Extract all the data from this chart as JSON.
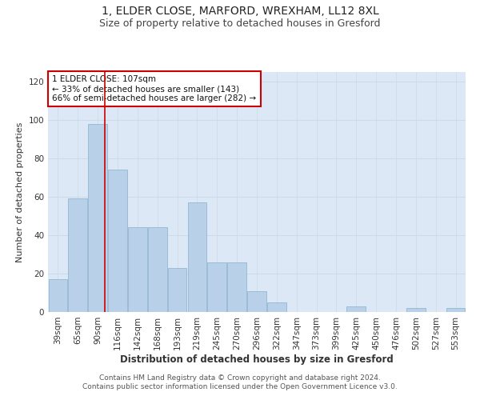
{
  "title1": "1, ELDER CLOSE, MARFORD, WREXHAM, LL12 8XL",
  "title2": "Size of property relative to detached houses in Gresford",
  "xlabel": "Distribution of detached houses by size in Gresford",
  "ylabel": "Number of detached properties",
  "categories": [
    "39sqm",
    "65sqm",
    "90sqm",
    "116sqm",
    "142sqm",
    "168sqm",
    "193sqm",
    "219sqm",
    "245sqm",
    "270sqm",
    "296sqm",
    "322sqm",
    "347sqm",
    "373sqm",
    "399sqm",
    "425sqm",
    "450sqm",
    "476sqm",
    "502sqm",
    "527sqm",
    "553sqm"
  ],
  "values": [
    17,
    59,
    98,
    74,
    44,
    44,
    23,
    57,
    26,
    26,
    11,
    5,
    0,
    0,
    0,
    3,
    0,
    0,
    2,
    0,
    2
  ],
  "bar_color": "#b8d0e8",
  "bar_edge_color": "#8ab0cc",
  "annotation_text": "1 ELDER CLOSE: 107sqm\n← 33% of detached houses are smaller (143)\n66% of semi-detached houses are larger (282) →",
  "annotation_box_color": "#ffffff",
  "annotation_box_edge_color": "#cc0000",
  "vline_color": "#cc0000",
  "vline_x_bin": 2,
  "ylim": [
    0,
    125
  ],
  "yticks": [
    0,
    20,
    40,
    60,
    80,
    100,
    120
  ],
  "grid_color": "#ccd9e8",
  "background_color": "#dce8f5",
  "footer": "Contains HM Land Registry data © Crown copyright and database right 2024.\nContains public sector information licensed under the Open Government Licence v3.0.",
  "title1_fontsize": 10,
  "title2_fontsize": 9,
  "xlabel_fontsize": 8.5,
  "ylabel_fontsize": 8,
  "tick_fontsize": 7.5,
  "annotation_fontsize": 7.5,
  "footer_fontsize": 6.5
}
